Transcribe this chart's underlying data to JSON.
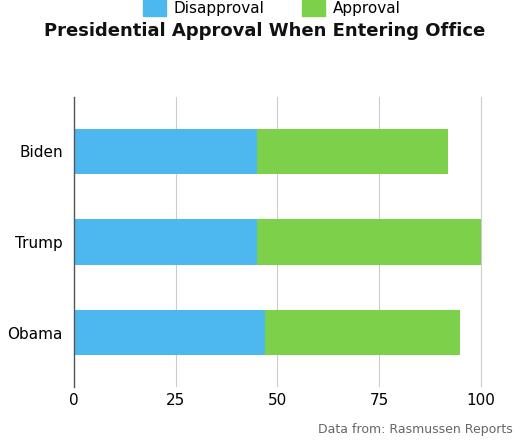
{
  "title": "Presidential Approval When Entering Office",
  "categories": [
    "Biden",
    "Trump",
    "Obama"
  ],
  "disapproval": [
    45,
    45,
    47
  ],
  "approval": [
    47,
    55,
    48
  ],
  "disapproval_color": "#4db8f0",
  "approval_color": "#7dd04a",
  "xlim": [
    0,
    108
  ],
  "xticks": [
    0,
    25,
    50,
    75,
    100
  ],
  "legend_labels": [
    "Disapproval",
    "Approval"
  ],
  "source_text": "Data from: Rasmussen Reports",
  "background_color": "#ffffff",
  "grid_color": "#cccccc",
  "title_fontsize": 13,
  "label_fontsize": 11,
  "tick_fontsize": 11,
  "source_fontsize": 9,
  "bar_height": 0.5
}
